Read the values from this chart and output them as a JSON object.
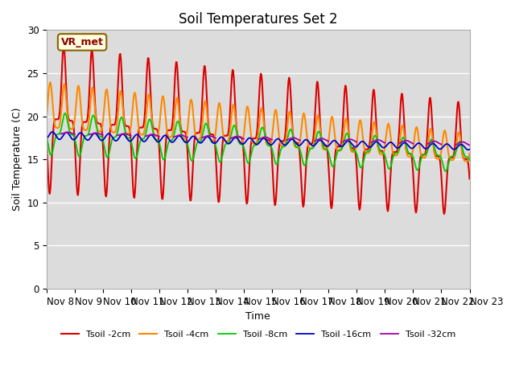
{
  "title": "Soil Temperatures Set 2",
  "xlabel": "Time",
  "ylabel": "Soil Temperature (C)",
  "ylim": [
    0,
    30
  ],
  "yticks": [
    0,
    5,
    10,
    15,
    20,
    25,
    30
  ],
  "xtick_labels": [
    "Nov 8",
    "Nov 9",
    "Nov 10",
    "Nov 11",
    "Nov 12",
    "Nov 13",
    "Nov 14",
    "Nov 15",
    "Nov 16",
    "Nov 17",
    "Nov 18",
    "Nov 19",
    "Nov 20",
    "Nov 21",
    "Nov 22",
    "Nov 23"
  ],
  "background_color": "#dcdcdc",
  "series_names": [
    "Tsoil -2cm",
    "Tsoil -4cm",
    "Tsoil -8cm",
    "Tsoil -16cm",
    "Tsoil -32cm"
  ],
  "series_colors": [
    "#dd0000",
    "#ff8800",
    "#00cc00",
    "#0000cc",
    "#aa00aa"
  ],
  "title_fontsize": 12,
  "label_fontsize": 9,
  "tick_fontsize": 8.5
}
